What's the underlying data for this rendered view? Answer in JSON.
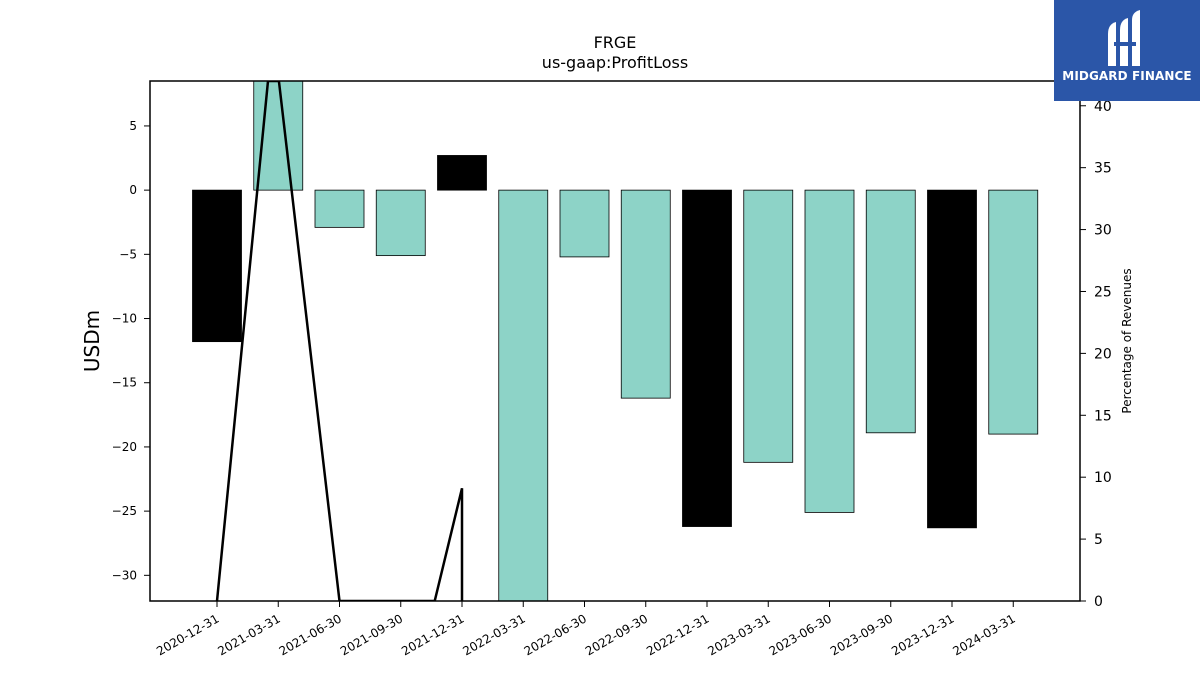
{
  "chart_data": {
    "type": "bar",
    "title": "FRGE",
    "subtitle": "us-gaap:ProfitLoss",
    "ylabel": "USDm",
    "y2label": "Percentage of Revenues",
    "categories": [
      "2020-12-31",
      "2021-03-31",
      "2021-06-30",
      "2021-09-30",
      "2021-12-31",
      "2022-03-31",
      "2022-06-30",
      "2022-09-30",
      "2022-12-31",
      "2023-03-31",
      "2023-06-30",
      "2023-09-30",
      "2023-12-31",
      "2024-03-31"
    ],
    "values": [
      -11.8,
      8.5,
      -2.9,
      -5.1,
      2.7,
      -32.0,
      -5.2,
      -16.2,
      -26.2,
      -21.2,
      -25.1,
      -18.9,
      -26.3,
      -19.0
    ],
    "bar_colors": [
      "#000000",
      "#8dd3c7",
      "#8dd3c7",
      "#8dd3c7",
      "#000000",
      "#8dd3c7",
      "#8dd3c7",
      "#8dd3c7",
      "#000000",
      "#8dd3c7",
      "#8dd3c7",
      "#8dd3c7",
      "#000000",
      "#8dd3c7"
    ],
    "line_series": {
      "axis": "right",
      "points": [
        {
          "x": "2020-12-31",
          "y": 0
        },
        {
          "x": "2021-03-16",
          "y": 42
        },
        {
          "x": "2021-04-01",
          "y": 42
        },
        {
          "x": "2021-06-30",
          "y": 0
        },
        {
          "x": "2021-11-20",
          "y": 0
        },
        {
          "x": "2021-12-31",
          "y": 9.1
        },
        {
          "x": "2021-12-31",
          "y": 0
        }
      ]
    },
    "ylim": [
      -32,
      8.5
    ],
    "y2lim": [
      0,
      42
    ],
    "yticks": [
      5,
      0,
      -5,
      -10,
      -15,
      -20,
      -25,
      -30
    ],
    "y2ticks": [
      0,
      5,
      10,
      15,
      20,
      25,
      30,
      35,
      40
    ],
    "colors": {
      "positive_or_q4": "#000000",
      "quarter": "#8dd3c7",
      "line": "#000000"
    }
  },
  "logo": {
    "text": "MIDGARD FINANCE",
    "color": "#2b56a8"
  }
}
